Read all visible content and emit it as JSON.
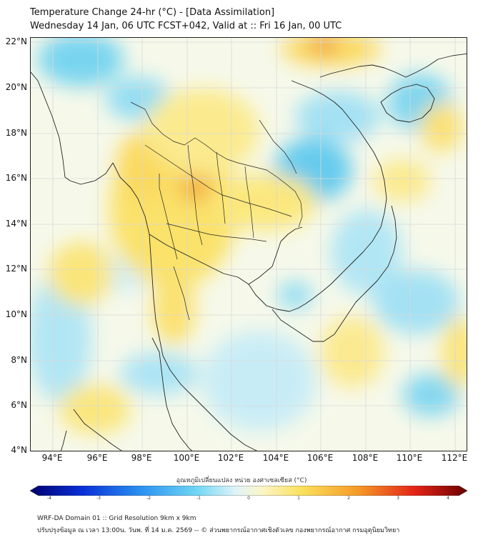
{
  "header": {
    "title_line1": "Temperature Change 24-hr (°C) - [Data Assimilation]",
    "title_line2": "Wednesday 14 Jan, 06 UTC FCST+042, Valid at :: Fri 16 Jan, 00 UTC"
  },
  "map": {
    "lat_labels": [
      "22°N",
      "20°N",
      "18°N",
      "16°N",
      "14°N",
      "12°N",
      "10°N",
      "8°N",
      "6°N",
      "4°N"
    ],
    "lon_labels": [
      "94°E",
      "96°E",
      "98°E",
      "100°E",
      "102°E",
      "104°E",
      "106°E",
      "108°E",
      "110°E",
      "112°E"
    ],
    "lat_range": [
      4,
      22.2
    ],
    "lon_range": [
      93,
      112.6
    ],
    "background_color": "#f6f9ea",
    "warm_color": "#fbe165",
    "cool_color": "#72d3f0",
    "hot_color": "#f0902a",
    "coast_color": "#222222"
  },
  "colorbar": {
    "title": "อุณหภูมิเปลี่ยนแปลง หน่วย องศาเซลเซียส (°C)",
    "ticks": [
      "-4",
      "-3",
      "-2",
      "-1",
      "0",
      "1",
      "2",
      "3",
      "4"
    ],
    "range": [
      -4,
      4
    ]
  },
  "footer": {
    "line1": "WRF-DA Domain 01 :: Grid Resolution 9km x 9km",
    "line2": "ปรับปรุงข้อมูล ณ เวลา 13:00น. วันพ. ที่ 14 ม.ค. 2569 -- © ส่วนพยากรณ์อากาศเชิงตัวเลข กองพยากรณ์อากาศ กรมอุตุนิยมวิทยา"
  }
}
